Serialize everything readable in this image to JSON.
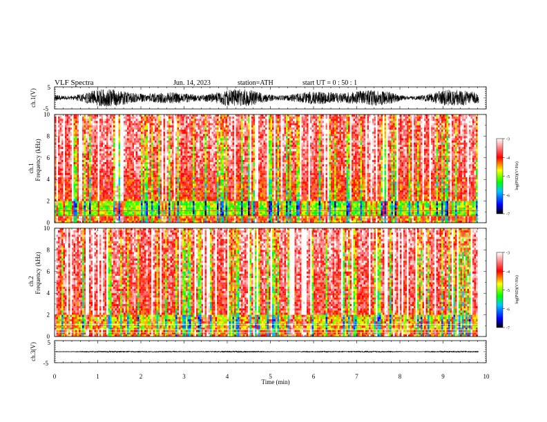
{
  "header": {
    "title": "VLF  Spectra",
    "date": "Jun. 14, 2023",
    "station": "station=ATH",
    "start_ut": "start  UT  =    0  : 50 : 1"
  },
  "chart_data": [
    {
      "type": "line",
      "panel": "ch1-waveform",
      "ylabel": "ch.1(V)",
      "ylim": [
        -5,
        5
      ],
      "yticks": [
        "5",
        "-5"
      ],
      "xlim": [
        0,
        10
      ],
      "signal": "dense black waveform, amplitude roughly -4 to +4 V, spanning 0 to 9.83 min",
      "x_end": 9.83
    },
    {
      "type": "heatmap",
      "panel": "ch1-spectrogram",
      "channel_label": "ch.1",
      "ylabel": "Frequency  (kHz)",
      "ylim": [
        0,
        10
      ],
      "yticks": [
        "10",
        "8",
        "6",
        "4",
        "2",
        "0"
      ],
      "xlim": [
        0,
        10
      ],
      "x_end": 9.83,
      "colorbar": {
        "label": "log(PSD)(V²/Hz)",
        "range": [
          -7,
          -3
        ],
        "ticks": [
          "-3",
          "-4",
          "-5",
          "-6",
          "-7"
        ],
        "colors": [
          "#000000",
          "#0000ff",
          "#00c8ff",
          "#00ff00",
          "#ffff00",
          "#ff0000",
          "#ffffff"
        ]
      }
    },
    {
      "type": "heatmap",
      "panel": "ch2-spectrogram",
      "channel_label": "ch.2",
      "ylabel": "Frequency  (kHz)",
      "ylim": [
        0,
        10
      ],
      "yticks": [
        "10",
        "8",
        "6",
        "4",
        "2",
        "0"
      ],
      "xlim": [
        0,
        10
      ],
      "x_end": 9.83,
      "colorbar": {
        "label": "log(PSD)(V²/Hz)",
        "range": [
          -7,
          -3
        ],
        "ticks": [
          "-3",
          "-4",
          "-5",
          "-6",
          "-7"
        ],
        "colors": [
          "#000000",
          "#0000ff",
          "#00c8ff",
          "#00ff00",
          "#ffff00",
          "#ff0000",
          "#ffffff"
        ]
      }
    },
    {
      "type": "line",
      "panel": "ch3-waveform",
      "ylabel": "ch.3(V)",
      "ylim": [
        -5,
        5
      ],
      "yticks": [
        "5",
        "-5"
      ],
      "xlim": [
        0,
        10
      ],
      "xlabel": "Time  (min)",
      "xticks": [
        "0",
        "1",
        "2",
        "3",
        "4",
        "5",
        "6",
        "7",
        "8",
        "9",
        "10"
      ],
      "signal": "nearly flat thick black trace centred near 0 V",
      "x_end": 9.83
    }
  ]
}
